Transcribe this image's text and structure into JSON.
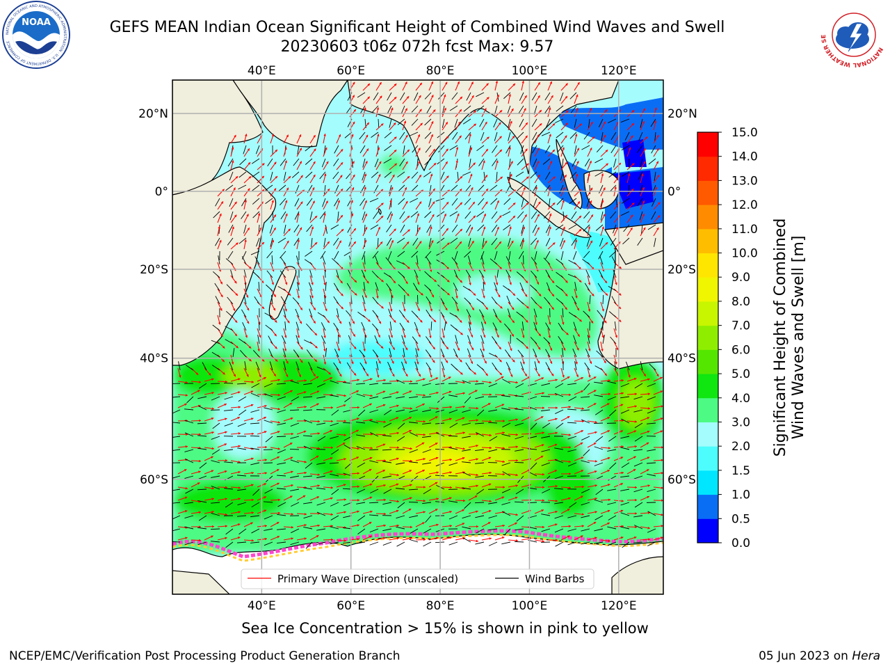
{
  "header": {
    "title_line1": "GEFS MEAN Indian Ocean Significant Height of Combined Wind Waves and Swell",
    "title_line2": "20230603 t06z 072h fcst   Max: 9.57"
  },
  "logos": {
    "left": {
      "icon": "noaa-logo-icon",
      "text": "NOAA",
      "ring_text": "NATIONAL OCEANIC AND ATMOSPHERIC ADMINISTRATION · U.S. DEPARTMENT OF COMMERCE"
    },
    "right": {
      "icon": "nws-logo-icon",
      "ring_text": "NATIONAL WEATHER SERVICE"
    }
  },
  "map": {
    "lon_ticks": [
      "40°E",
      "60°E",
      "80°E",
      "100°E",
      "120°E"
    ],
    "lon_values": [
      40,
      60,
      80,
      100,
      120
    ],
    "lat_ticks": [
      "20°N",
      "0°",
      "20°S",
      "40°S",
      "60°S"
    ],
    "lat_values": [
      20,
      0,
      -20,
      -40,
      -60
    ],
    "extent": {
      "lon_min": 20,
      "lon_max": 130,
      "lat_min": -72,
      "lat_max": 28
    },
    "grid": true,
    "legend": {
      "placement": "lower-center",
      "entries": [
        {
          "label": "Primary Wave Direction (unscaled)",
          "color": "#ff0000"
        },
        {
          "label": "Wind Barbs",
          "color": "#000000"
        }
      ]
    }
  },
  "colorbar": {
    "label_line1": "Significant Height of Combined",
    "label_line2": "Wind Waves and Swell [m]",
    "ticks": [
      "0.0",
      "0.5",
      "1.0",
      "1.5",
      "2.0",
      "3.0",
      "4.0",
      "5.0",
      "6.0",
      "7.0",
      "8.0",
      "9.0",
      "10.0",
      "11.0",
      "12.0",
      "13.0",
      "14.0",
      "15.0"
    ],
    "colors": [
      "#0000ff",
      "#0a6ef5",
      "#00e6ff",
      "#4dfdfd",
      "#a4fcfc",
      "#4dfa84",
      "#10e610",
      "#55e600",
      "#8fee00",
      "#c8f500",
      "#f0f500",
      "#ffe600",
      "#ffbd00",
      "#ff8c00",
      "#ff5a00",
      "#ff2a00",
      "#ff0000"
    ]
  },
  "caption": "Sea Ice Concentration > 15% is shown in pink to yellow",
  "footer": {
    "left": "NCEP/EMC/Verification Post Processing Product Generation Branch",
    "right_date": "05 Jun 2023 on ",
    "right_host": "Hera"
  }
}
